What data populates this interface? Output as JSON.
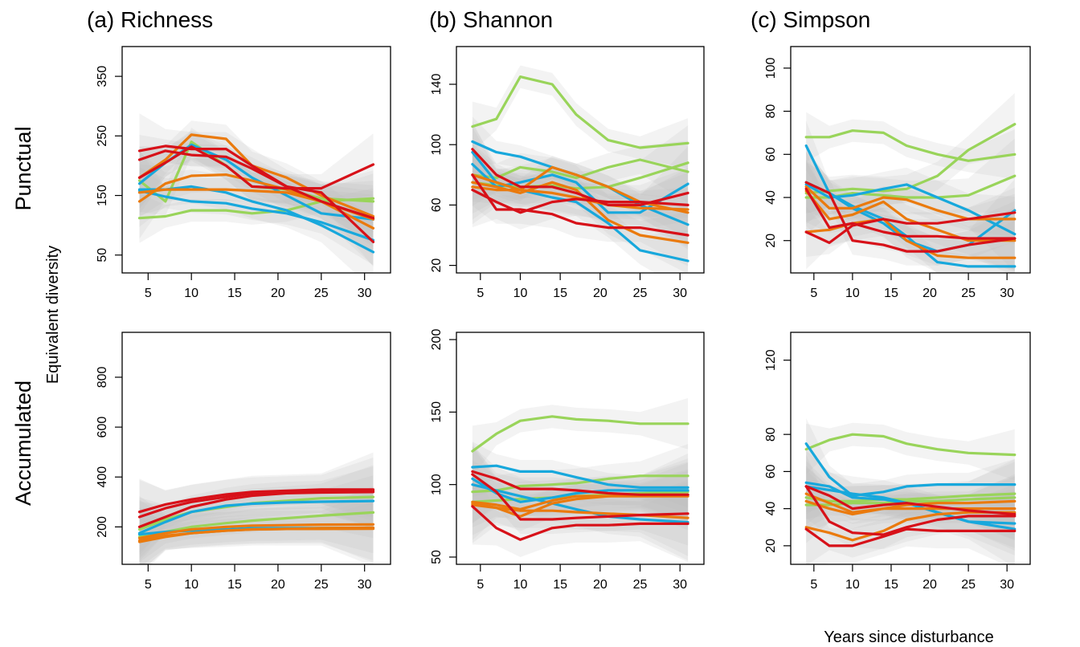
{
  "figure": {
    "row_labels": [
      "Punctual",
      "Accumulated"
    ],
    "ylabel": "Equivalent diversity",
    "xlabel": "Years since disturbance",
    "colors": {
      "green": "#99d45a",
      "blue": "#18a8dc",
      "orange": "#ea7a0d",
      "red": "#d71119",
      "ribbon": "#bdbdbd",
      "frame": "#000000"
    }
  },
  "chart_data": [
    {
      "type": "line",
      "title": "(a) Richness",
      "row": "Punctual",
      "x": [
        4,
        7,
        10,
        14,
        17,
        21,
        25,
        31
      ],
      "xlim": [
        2,
        33
      ],
      "xticks": [
        5,
        10,
        15,
        20,
        25,
        30
      ],
      "ylim": [
        20,
        400
      ],
      "yticks": [
        50,
        150,
        250,
        350
      ],
      "series": [
        {
          "color": "green",
          "values": [
            112,
            115,
            125,
            125,
            120,
            125,
            140,
            145
          ]
        },
        {
          "color": "green",
          "values": [
            175,
            140,
            240,
            200,
            165,
            160,
            145,
            140
          ]
        },
        {
          "color": "blue",
          "values": [
            160,
            160,
            165,
            155,
            140,
            125,
            100,
            55
          ]
        },
        {
          "color": "blue",
          "values": [
            158,
            148,
            140,
            137,
            128,
            120,
            105,
            75
          ]
        },
        {
          "color": "blue",
          "values": [
            170,
            205,
            235,
            210,
            180,
            150,
            120,
            110
          ]
        },
        {
          "color": "orange",
          "values": [
            140,
            170,
            183,
            185,
            175,
            160,
            140,
            95
          ]
        },
        {
          "color": "orange",
          "values": [
            155,
            160,
            160,
            160,
            158,
            155,
            140,
            110
          ]
        },
        {
          "color": "orange",
          "values": [
            180,
            210,
            252,
            245,
            200,
            180,
            150,
            115
          ]
        },
        {
          "color": "red",
          "values": [
            225,
            233,
            228,
            228,
            200,
            165,
            140,
            112
          ]
        },
        {
          "color": "red",
          "values": [
            210,
            225,
            218,
            215,
            195,
            165,
            155,
            72
          ]
        },
        {
          "color": "red",
          "values": [
            180,
            205,
            232,
            200,
            165,
            162,
            162,
            202
          ]
        }
      ]
    },
    {
      "type": "line",
      "title": "(b) Shannon",
      "row": "Punctual",
      "x": [
        4,
        7,
        10,
        14,
        17,
        21,
        25,
        31
      ],
      "xlim": [
        2,
        33
      ],
      "xticks": [
        5,
        10,
        15,
        20,
        25,
        30
      ],
      "ylim": [
        15,
        165
      ],
      "yticks": [
        20,
        60,
        100,
        140
      ],
      "series": [
        {
          "color": "green",
          "values": [
            112,
            117,
            145,
            140,
            120,
            103,
            98,
            101
          ]
        },
        {
          "color": "green",
          "values": [
            80,
            78,
            85,
            82,
            78,
            85,
            90,
            82
          ]
        },
        {
          "color": "green",
          "values": [
            75,
            73,
            72,
            73,
            71,
            72,
            78,
            88
          ]
        },
        {
          "color": "blue",
          "values": [
            102,
            95,
            92,
            85,
            80,
            72,
            60,
            47
          ]
        },
        {
          "color": "blue",
          "values": [
            95,
            75,
            70,
            65,
            62,
            48,
            30,
            23
          ]
        },
        {
          "color": "blue",
          "values": [
            87,
            72,
            75,
            80,
            75,
            55,
            55,
            74
          ]
        },
        {
          "color": "orange",
          "values": [
            80,
            75,
            70,
            85,
            80,
            72,
            62,
            55
          ]
        },
        {
          "color": "orange",
          "values": [
            75,
            72,
            68,
            75,
            70,
            50,
            40,
            35
          ]
        },
        {
          "color": "orange",
          "values": [
            72,
            70,
            70,
            68,
            65,
            60,
            58,
            57
          ]
        },
        {
          "color": "red",
          "values": [
            97,
            80,
            72,
            72,
            68,
            60,
            60,
            68
          ]
        },
        {
          "color": "red",
          "values": [
            80,
            57,
            57,
            54,
            48,
            45,
            45,
            40
          ]
        },
        {
          "color": "red",
          "values": [
            70,
            62,
            55,
            62,
            64,
            62,
            62,
            60
          ]
        }
      ]
    },
    {
      "type": "line",
      "title": "(c) Simpson",
      "row": "Punctual",
      "x": [
        4,
        7,
        10,
        14,
        17,
        21,
        25,
        31
      ],
      "xlim": [
        2,
        33
      ],
      "xticks": [
        5,
        10,
        15,
        20,
        25,
        30
      ],
      "ylim": [
        5,
        110
      ],
      "yticks": [
        20,
        40,
        60,
        80,
        100
      ],
      "series": [
        {
          "color": "green",
          "values": [
            68,
            68,
            71,
            70,
            64,
            60,
            57,
            60
          ]
        },
        {
          "color": "green",
          "values": [
            42,
            43,
            44,
            43,
            44,
            50,
            62,
            74
          ]
        },
        {
          "color": "green",
          "values": [
            40,
            40,
            42,
            41,
            40,
            40,
            41,
            50
          ]
        },
        {
          "color": "blue",
          "values": [
            64,
            42,
            36,
            30,
            22,
            10,
            8,
            8
          ]
        },
        {
          "color": "blue",
          "values": [
            47,
            42,
            35,
            28,
            20,
            15,
            18,
            34
          ]
        },
        {
          "color": "blue",
          "values": [
            46,
            40,
            41,
            44,
            46,
            40,
            34,
            23
          ]
        },
        {
          "color": "orange",
          "values": [
            45,
            35,
            35,
            40,
            39,
            34,
            30,
            30
          ]
        },
        {
          "color": "orange",
          "values": [
            43,
            30,
            32,
            38,
            30,
            25,
            20,
            20
          ]
        },
        {
          "color": "orange",
          "values": [
            24,
            25,
            28,
            30,
            20,
            13,
            12,
            12
          ]
        },
        {
          "color": "red",
          "values": [
            24,
            19,
            27,
            30,
            28,
            28,
            30,
            33
          ]
        },
        {
          "color": "red",
          "values": [
            47,
            42,
            20,
            18,
            15,
            15,
            18,
            21
          ]
        },
        {
          "color": "red",
          "values": [
            44,
            26,
            28,
            24,
            22,
            22,
            21,
            21
          ]
        }
      ]
    },
    {
      "type": "line",
      "title": "",
      "row": "Accumulated",
      "x": [
        4,
        7,
        10,
        14,
        17,
        21,
        25,
        31
      ],
      "xlim": [
        2,
        33
      ],
      "xticks": [
        5,
        10,
        15,
        20,
        25,
        30
      ],
      "ylim": [
        50,
        980
      ],
      "yticks": [
        200,
        400,
        600,
        800
      ],
      "series": [
        {
          "color": "green",
          "values": [
            160,
            180,
            200,
            215,
            225,
            235,
            245,
            258
          ]
        },
        {
          "color": "green",
          "values": [
            190,
            230,
            260,
            280,
            295,
            305,
            315,
            320
          ]
        },
        {
          "color": "blue",
          "values": [
            170,
            180,
            185,
            190,
            195,
            195,
            195,
            195
          ]
        },
        {
          "color": "blue",
          "values": [
            175,
            220,
            260,
            285,
            293,
            298,
            301,
            304
          ]
        },
        {
          "color": "orange",
          "values": [
            145,
            165,
            175,
            185,
            190,
            192,
            192,
            193
          ]
        },
        {
          "color": "orange",
          "values": [
            155,
            175,
            190,
            200,
            205,
            207,
            209,
            210
          ]
        },
        {
          "color": "orange",
          "values": [
            140,
            160,
            175,
            185,
            190,
            192,
            195,
            197
          ]
        },
        {
          "color": "red",
          "values": [
            260,
            290,
            310,
            330,
            340,
            345,
            350,
            350
          ]
        },
        {
          "color": "red",
          "values": [
            240,
            275,
            300,
            320,
            335,
            340,
            345,
            345
          ]
        },
        {
          "color": "red",
          "values": [
            200,
            240,
            280,
            310,
            325,
            335,
            338,
            340
          ]
        }
      ]
    },
    {
      "type": "line",
      "title": "",
      "row": "Accumulated",
      "x": [
        4,
        7,
        10,
        14,
        17,
        21,
        25,
        31
      ],
      "xlim": [
        2,
        33
      ],
      "xticks": [
        5,
        10,
        15,
        20,
        25,
        30
      ],
      "ylim": [
        45,
        205
      ],
      "yticks": [
        50,
        100,
        150,
        200
      ],
      "series": [
        {
          "color": "green",
          "values": [
            123,
            135,
            144,
            147,
            145,
            144,
            142,
            142
          ]
        },
        {
          "color": "green",
          "values": [
            95,
            96,
            99,
            100,
            101,
            104,
            106,
            106
          ]
        },
        {
          "color": "green",
          "values": [
            88,
            89,
            90,
            91,
            92,
            93,
            94,
            95
          ]
        },
        {
          "color": "blue",
          "values": [
            112,
            113,
            109,
            109,
            105,
            100,
            98,
            98
          ]
        },
        {
          "color": "blue",
          "values": [
            104,
            94,
            88,
            91,
            94,
            96,
            96,
            96
          ]
        },
        {
          "color": "blue",
          "values": [
            100,
            96,
            92,
            87,
            83,
            78,
            76,
            74
          ]
        },
        {
          "color": "orange",
          "values": [
            88,
            86,
            83,
            89,
            92,
            92,
            92,
            92
          ]
        },
        {
          "color": "orange",
          "values": [
            87,
            84,
            78,
            87,
            90,
            92,
            93,
            93
          ]
        },
        {
          "color": "orange",
          "values": [
            86,
            84,
            82,
            82,
            81,
            80,
            79,
            77
          ]
        },
        {
          "color": "red",
          "values": [
            109,
            104,
            97,
            97,
            96,
            94,
            93,
            93
          ]
        },
        {
          "color": "red",
          "values": [
            107,
            95,
            76,
            76,
            77,
            78,
            79,
            80
          ]
        },
        {
          "color": "red",
          "values": [
            85,
            70,
            62,
            70,
            72,
            72,
            73,
            73
          ]
        }
      ]
    },
    {
      "type": "line",
      "title": "",
      "row": "Accumulated",
      "x": [
        4,
        7,
        10,
        14,
        17,
        21,
        25,
        31
      ],
      "xlim": [
        2,
        33
      ],
      "xticks": [
        5,
        10,
        15,
        20,
        25,
        30
      ],
      "ylim": [
        10,
        135
      ],
      "yticks": [
        20,
        40,
        60,
        80,
        120
      ],
      "series": [
        {
          "color": "green",
          "values": [
            72,
            77,
            80,
            79,
            75,
            72,
            70,
            69
          ]
        },
        {
          "color": "green",
          "values": [
            46,
            44,
            44,
            45,
            45,
            46,
            47,
            48
          ]
        },
        {
          "color": "green",
          "values": [
            42,
            42,
            43,
            43,
            44,
            44,
            45,
            46
          ]
        },
        {
          "color": "blue",
          "values": [
            75,
            57,
            47,
            49,
            52,
            53,
            53,
            53
          ]
        },
        {
          "color": "blue",
          "values": [
            54,
            52,
            46,
            45,
            43,
            38,
            33,
            32
          ]
        },
        {
          "color": "blue",
          "values": [
            52,
            50,
            48,
            46,
            43,
            38,
            33,
            29
          ]
        },
        {
          "color": "orange",
          "values": [
            48,
            43,
            38,
            40,
            42,
            43,
            43,
            44
          ]
        },
        {
          "color": "orange",
          "values": [
            44,
            40,
            37,
            40,
            40,
            40,
            40,
            40
          ]
        },
        {
          "color": "orange",
          "values": [
            30,
            27,
            23,
            28,
            34,
            37,
            38,
            38
          ]
        },
        {
          "color": "red",
          "values": [
            52,
            47,
            40,
            42,
            43,
            41,
            39,
            37
          ]
        },
        {
          "color": "red",
          "values": [
            52,
            33,
            27,
            26,
            30,
            34,
            36,
            36
          ]
        },
        {
          "color": "red",
          "values": [
            29,
            20,
            20,
            25,
            29,
            28,
            28,
            28
          ]
        }
      ]
    }
  ]
}
